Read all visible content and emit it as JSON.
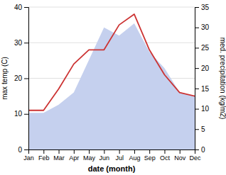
{
  "chart_data": {
    "type": "line",
    "categories": [
      "Jan",
      "Feb",
      "Mar",
      "Apr",
      "May",
      "Jun",
      "Jul",
      "Aug",
      "Sep",
      "Oct",
      "Nov",
      "Dec"
    ],
    "xlabel": "date (month)",
    "ylabel": "max temp (C)",
    "y2label": "med. precipitation (kg/m2)",
    "series": [
      {
        "type": "area",
        "axis": "y2",
        "color": "#c5d0ee",
        "values": [
          9,
          9,
          11,
          14,
          22,
          30,
          28,
          31,
          24,
          20,
          14,
          13
        ]
      },
      {
        "type": "line",
        "color": "#cc3333",
        "values": [
          11,
          11,
          17,
          24,
          28,
          28,
          35,
          38,
          28,
          21,
          16,
          15
        ]
      }
    ],
    "ylim": [
      0,
      40
    ],
    "yticks": [
      0,
      10,
      20,
      30,
      40
    ],
    "y2lim": [
      0,
      35
    ],
    "y2ticks": [
      0,
      5,
      10,
      15,
      20,
      25,
      30,
      35
    ],
    "grid": true
  }
}
